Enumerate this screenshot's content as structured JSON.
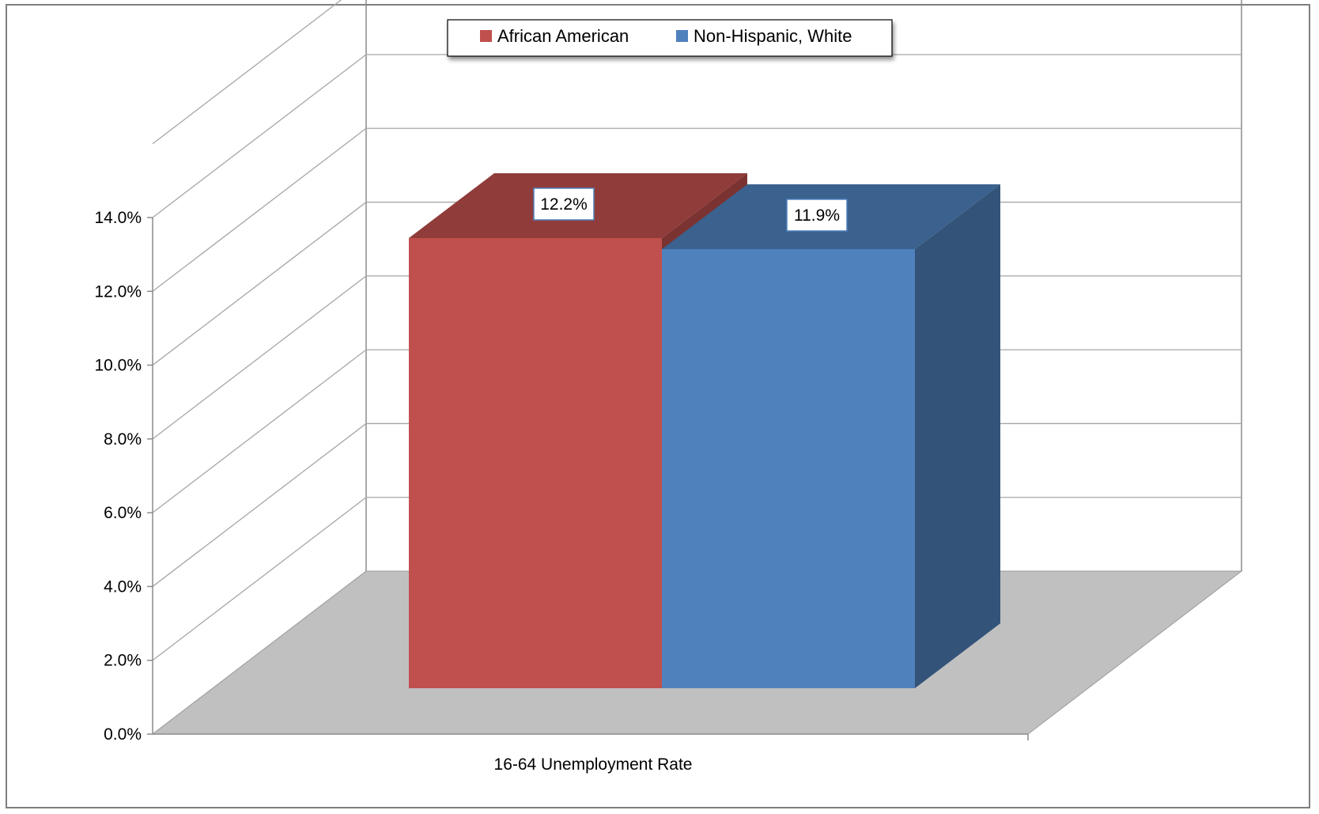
{
  "chart_data": {
    "type": "bar",
    "categories": [
      "16-64 Unemployment Rate"
    ],
    "series": [
      {
        "name": "African American",
        "values": [
          12.2
        ],
        "label": "12.2%",
        "color": "#C0504D"
      },
      {
        "name": "Non-Hispanic, White",
        "values": [
          11.9
        ],
        "label": "11.9%",
        "color": "#4F81BD"
      }
    ],
    "ylim": [
      0,
      14
    ],
    "yticks": [
      "0.0%",
      "2.0%",
      "4.0%",
      "6.0%",
      "8.0%",
      "10.0%",
      "12.0%",
      "14.0%"
    ],
    "legend_position": "top",
    "grid": true,
    "three_d": true
  }
}
